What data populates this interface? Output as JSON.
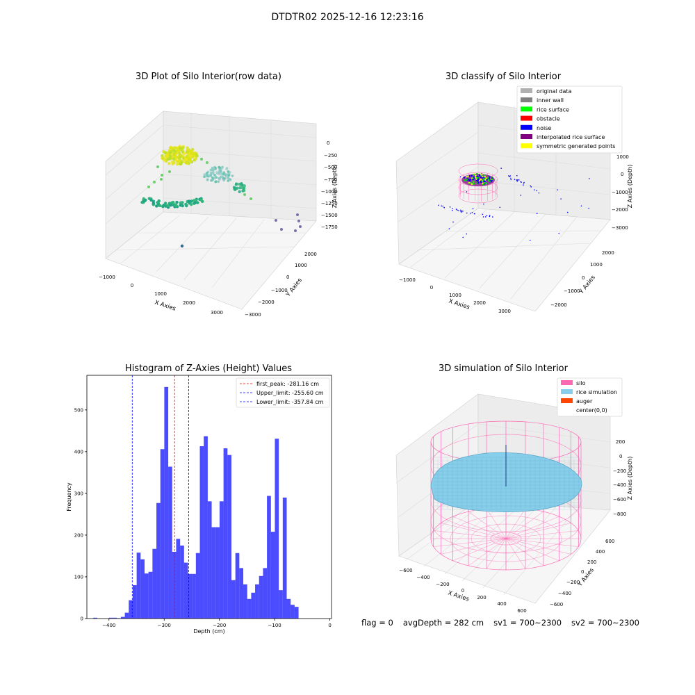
{
  "suptitle": "DTDTR02 2025-12-16 12:23:16",
  "panels": {
    "raw": {
      "title": "3D Plot of Silo Interior(row data)",
      "xlabel": "X Axies",
      "ylabel": "Y Axies",
      "zlabel": "Z Axies (Depth)",
      "xticks": [
        "−1000",
        "0",
        "1000",
        "2000",
        "3000"
      ],
      "yticks": [
        "2000",
        "1000",
        "0",
        "−1000",
        "−2000",
        "−3000"
      ],
      "zticks": [
        "0",
        "−250",
        "−500",
        "−750",
        "−1000",
        "−1250",
        "−1500",
        "−1750"
      ]
    },
    "classify": {
      "title": "3D classify of Silo Interior",
      "xlabel": "X Axies",
      "ylabel": "Y Axies",
      "zlabel": "Z Axies (Depth)",
      "xticks": [
        "−1000",
        "0",
        "1000",
        "2000",
        "3000"
      ],
      "yticks": [
        "2000",
        "1000",
        "0",
        "−1000",
        "−2000"
      ],
      "zticks": [
        "1000",
        "0",
        "−1000",
        "−2000",
        "−3000"
      ],
      "legend": [
        {
          "label": "original data",
          "color": "#b0b0b0"
        },
        {
          "label": "inner wall",
          "color": "#808080"
        },
        {
          "label": "rice surface",
          "color": "#00ff00"
        },
        {
          "label": "obstacle",
          "color": "#ff0000"
        },
        {
          "label": "noise",
          "color": "#0000ff"
        },
        {
          "label": "interpolated rice surface",
          "color": "#800080"
        },
        {
          "label": "symmetric generated points",
          "color": "#ffff00"
        }
      ]
    },
    "simulation": {
      "title": "3D simulation of Silo Interior",
      "xlabel": "X Axies",
      "ylabel": "Y Axies",
      "zlabel": "Z Axies (Depth)",
      "xticks": [
        "−600",
        "−400",
        "−200",
        "0",
        "200",
        "400",
        "600"
      ],
      "yticks": [
        "600",
        "400",
        "200",
        "0",
        "−200",
        "−400",
        "−600"
      ],
      "zticks": [
        "200",
        "0",
        "−200",
        "−400",
        "−600",
        "−800"
      ],
      "legend": [
        {
          "label": "silo",
          "color": "#ff69b4"
        },
        {
          "label": "rice simulation",
          "color": "#87ceeb"
        },
        {
          "label": "auger",
          "color": "#ff4500"
        },
        {
          "label": "center(0,0)",
          "color": ""
        }
      ]
    }
  },
  "chart_data": {
    "type": "bar",
    "title": "Histogram of Z-Axies (Height) Values",
    "xlabel": "Depth (cm)",
    "ylabel": "Frequency",
    "xlim": [
      -440,
      3
    ],
    "ylim": [
      0,
      583
    ],
    "xticks": [
      -400,
      -300,
      -200,
      -100,
      0
    ],
    "yticks": [
      0,
      100,
      200,
      300,
      400,
      500
    ],
    "bin_width": 7.15,
    "bar_color": "#0000ff",
    "bin_start": [
      -428.5,
      -421.35,
      -414.2,
      -407.05,
      -399.9,
      -392.75,
      -385.6,
      -378.45,
      -371.3,
      -364.15,
      -357.0,
      -349.85,
      -342.7,
      -335.55,
      -328.4,
      -321.25,
      -314.1,
      -306.95,
      -299.8,
      -292.65,
      -285.5,
      -278.35,
      -271.2,
      -264.05,
      -256.9,
      -249.75,
      -242.6,
      -235.45,
      -228.3,
      -221.15,
      -214.0,
      -206.85,
      -199.7,
      -192.55,
      -185.4,
      -178.25,
      -171.1,
      -163.95,
      -156.8,
      -149.65,
      -142.5,
      -135.35,
      -128.2,
      -121.05,
      -113.9,
      -106.75,
      -99.6,
      -92.45,
      -85.3,
      -78.15,
      -71.0,
      -63.85,
      -56.7,
      -49.55,
      -42.4,
      -35.25,
      -28.1,
      -20.95,
      -13.8,
      -6.65
    ],
    "values": [
      2,
      0,
      0,
      0,
      2,
      2,
      1,
      4,
      14,
      44,
      80,
      158,
      142,
      108,
      112,
      167,
      277,
      406,
      555,
      364,
      160,
      191,
      175,
      134,
      107,
      107,
      157,
      413,
      437,
      281,
      219,
      219,
      281,
      408,
      392,
      92,
      157,
      121,
      82,
      47,
      62,
      82,
      102,
      121,
      294,
      208,
      431,
      68,
      290,
      47,
      33,
      28,
      0,
      0,
      0,
      0,
      0,
      0,
      0,
      0
    ],
    "lines": [
      {
        "label": "first_peak: -281.16 cm",
        "x": -281.16,
        "color": "#ff0000"
      },
      {
        "label": "Upper_limit: -255.60 cm",
        "x": -255.6,
        "color": "#0000ff"
      },
      {
        "label": "Lower_limit: -357.84 cm",
        "x": -357.84,
        "color": "#0000ff"
      }
    ]
  },
  "status": {
    "flag": "flag = 0",
    "avg": "avgDepth = 282 cm",
    "sv1": "sv1 = 700~2300",
    "sv2": "sv2 = 700~2300"
  }
}
